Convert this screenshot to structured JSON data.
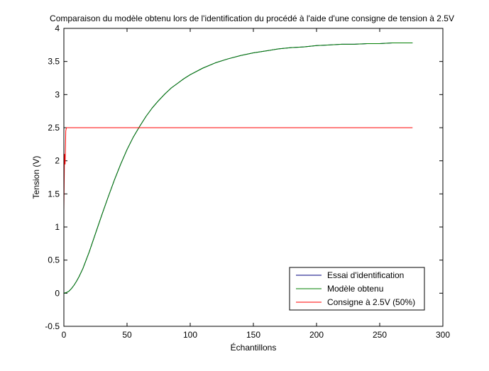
{
  "chart_data": {
    "type": "line",
    "title": "Comparaison du modèle obtenu lors de l'identification du procédé à l'aide d'une consigne de tension à 2.5V",
    "xlabel": "Échantillons",
    "ylabel": "Tension (V)",
    "xlim": [
      0,
      300
    ],
    "ylim": [
      -0.5,
      4
    ],
    "xticks": [
      0,
      50,
      100,
      150,
      200,
      250,
      300
    ],
    "yticks": [
      -0.5,
      0,
      0.5,
      1,
      1.5,
      2,
      2.5,
      3,
      3.5,
      4
    ],
    "xtick_labels": [
      "0",
      "50",
      "100",
      "150",
      "200",
      "250",
      "300"
    ],
    "ytick_labels": [
      "-0.5",
      "0",
      "0.5",
      "1",
      "1.5",
      "2",
      "2.5",
      "3",
      "3.5",
      "4"
    ],
    "grid": false,
    "legend_position": "bottom-right",
    "series": [
      {
        "name": "Essai d'identification",
        "color": "#00007f",
        "x": [
          0,
          2,
          4,
          6,
          8,
          10,
          12,
          15,
          20,
          25,
          30,
          35,
          40,
          45,
          50,
          55,
          60,
          65,
          70,
          75,
          80,
          85,
          90,
          95,
          100,
          110,
          120,
          130,
          140,
          150,
          160,
          170,
          180,
          190,
          200,
          210,
          220,
          230,
          240,
          250,
          260,
          270,
          276
        ],
        "y": [
          0.0,
          0.01,
          0.03,
          0.07,
          0.12,
          0.18,
          0.25,
          0.37,
          0.62,
          0.9,
          1.18,
          1.45,
          1.71,
          1.95,
          2.17,
          2.36,
          2.52,
          2.67,
          2.8,
          2.91,
          3.01,
          3.1,
          3.17,
          3.24,
          3.3,
          3.4,
          3.48,
          3.54,
          3.59,
          3.63,
          3.66,
          3.69,
          3.71,
          3.72,
          3.74,
          3.75,
          3.76,
          3.76,
          3.77,
          3.77,
          3.78,
          3.78,
          3.78
        ]
      },
      {
        "name": "Modèle obtenu",
        "color": "#007f00",
        "x": [
          0,
          2,
          4,
          6,
          8,
          10,
          12,
          15,
          20,
          25,
          30,
          35,
          40,
          45,
          50,
          55,
          60,
          65,
          70,
          75,
          80,
          85,
          90,
          95,
          100,
          110,
          120,
          130,
          140,
          150,
          160,
          170,
          180,
          190,
          200,
          210,
          220,
          230,
          240,
          250,
          260,
          270,
          276
        ],
        "y": [
          0.0,
          0.01,
          0.03,
          0.07,
          0.12,
          0.18,
          0.25,
          0.37,
          0.62,
          0.9,
          1.18,
          1.45,
          1.71,
          1.95,
          2.17,
          2.36,
          2.52,
          2.67,
          2.8,
          2.91,
          3.01,
          3.1,
          3.17,
          3.24,
          3.3,
          3.4,
          3.48,
          3.54,
          3.59,
          3.63,
          3.66,
          3.69,
          3.71,
          3.72,
          3.74,
          3.75,
          3.76,
          3.76,
          3.77,
          3.77,
          3.78,
          3.78,
          3.78
        ]
      },
      {
        "name": "Consigne à 2.5V (50%)",
        "color": "#ff0000",
        "x": [
          0,
          0.5,
          1,
          1.5,
          2,
          3,
          50,
          100,
          150,
          200,
          250,
          276
        ],
        "y": [
          1.25,
          2.1,
          1.95,
          2.45,
          2.5,
          2.5,
          2.5,
          2.5,
          2.5,
          2.5,
          2.5,
          2.5
        ]
      }
    ]
  }
}
